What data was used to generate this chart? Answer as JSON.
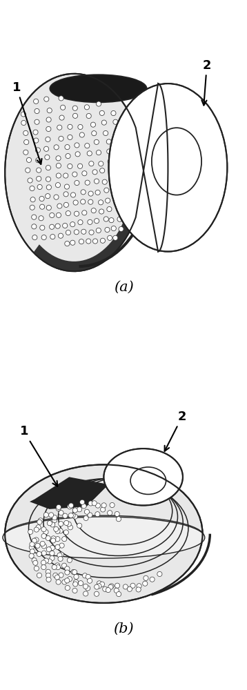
{
  "fig_width": 3.58,
  "fig_height": 10.0,
  "dpi": 100,
  "bg_color": "#ffffff",
  "label_a": "(a)",
  "label_b": "(b)",
  "label_fontsize": 13,
  "caption_fontsize": 15,
  "line_color": "#222222",
  "particle_edge": "#333333",
  "dark_shade": "#1a1a1a",
  "mid_shade": "#666666",
  "light_shade": "#aaaaaa"
}
